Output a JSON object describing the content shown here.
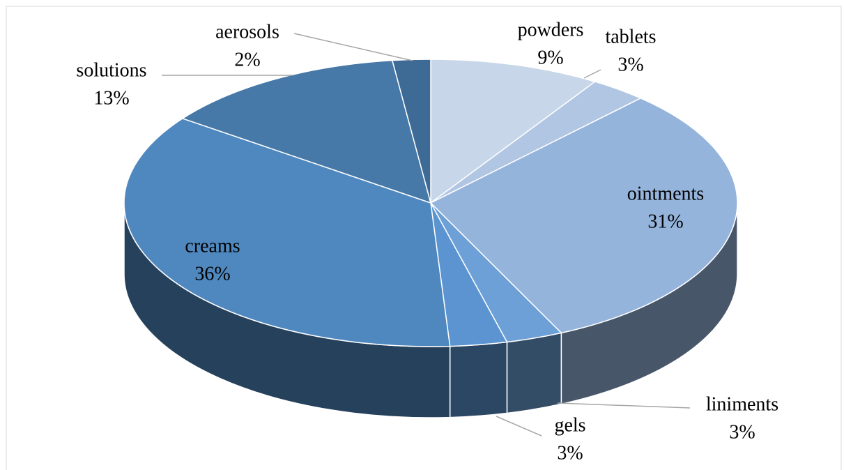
{
  "chart_data": {
    "type": "pie",
    "categories": [
      "powders",
      "tablets",
      "ointments",
      "liniments",
      "gels",
      "creams",
      "solutions",
      "aerosols"
    ],
    "values": [
      9,
      3,
      31,
      3,
      3,
      36,
      13,
      2
    ],
    "value_labels": [
      "9%",
      "3%",
      "31%",
      "3%",
      "3%",
      "36%",
      "13%",
      "2%"
    ],
    "colors": [
      "#c8d6ea",
      "#b0c6e3",
      "#95b4dc",
      "#6ca0d6",
      "#5b94d1",
      "#4f88bf",
      "#4779a8",
      "#3e6b96"
    ]
  }
}
